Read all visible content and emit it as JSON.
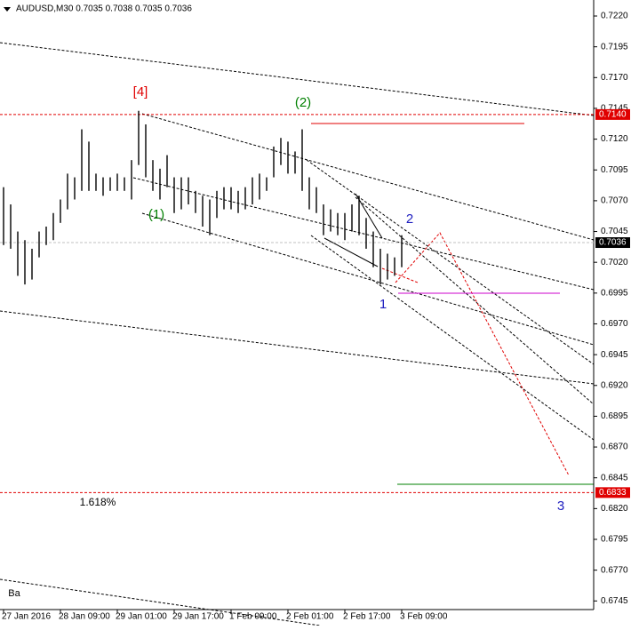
{
  "chart_data": {
    "type": "hl",
    "title": "AUDUSD,M30  0.7035 0.7038 0.7035 0.7036",
    "x": [
      0,
      4,
      8,
      12,
      16,
      20,
      24,
      28,
      32,
      36,
      40,
      44,
      48,
      52,
      56,
      60,
      64,
      68,
      72,
      76,
      80,
      84,
      88,
      92,
      96,
      100,
      104,
      108,
      112,
      116,
      120,
      124,
      128,
      132,
      136,
      140,
      144,
      148,
      152,
      156,
      160,
      164,
      168,
      172,
      176,
      180,
      184,
      188,
      192,
      196,
      200,
      204,
      208,
      212,
      216,
      220,
      224
    ],
    "high": [
      0.7081,
      0.7067,
      0.7045,
      0.7038,
      0.7031,
      0.7045,
      0.7049,
      0.706,
      0.7071,
      0.7092,
      0.7089,
      0.7128,
      0.7118,
      0.7092,
      0.7089,
      0.7089,
      0.7092,
      0.7089,
      0.7103,
      0.7143,
      0.7132,
      0.7103,
      0.7096,
      0.7107,
      0.7089,
      0.7089,
      0.7089,
      0.7078,
      0.7074,
      0.7071,
      0.7078,
      0.7081,
      0.7081,
      0.7078,
      0.7081,
      0.7089,
      0.7092,
      0.7089,
      0.7114,
      0.7121,
      0.7118,
      0.711,
      0.7128,
      0.7089,
      0.7081,
      0.7067,
      0.7063,
      0.706,
      0.706,
      0.7067,
      0.7074,
      0.7056,
      0.7045,
      0.7031,
      0.7027,
      0.7024,
      0.7042
    ],
    "low": [
      0.7034,
      0.7031,
      0.7009,
      0.7002,
      0.7006,
      0.7024,
      0.7034,
      0.7038,
      0.7052,
      0.7063,
      0.7071,
      0.7078,
      0.7078,
      0.7078,
      0.7074,
      0.7078,
      0.7078,
      0.7078,
      0.7071,
      0.7099,
      0.7089,
      0.7078,
      0.7071,
      0.7081,
      0.706,
      0.7063,
      0.7067,
      0.706,
      0.7049,
      0.7042,
      0.7056,
      0.7063,
      0.7063,
      0.706,
      0.7063,
      0.7067,
      0.7071,
      0.7078,
      0.7089,
      0.7099,
      0.7092,
      0.7092,
      0.7078,
      0.7063,
      0.706,
      0.7042,
      0.7045,
      0.7042,
      0.7038,
      0.7045,
      0.7042,
      0.7031,
      0.7016,
      0.7002,
      0.7006,
      0.7009,
      0.7016
    ],
    "color": "#000000",
    "xlim": [
      -2,
      332
    ],
    "xticks": [
      {
        "value": 0,
        "label": "27 Jan 2016"
      },
      {
        "value": 32,
        "label": "28 Jan 09:00"
      },
      {
        "value": 64,
        "label": "29 Jan 01:00"
      },
      {
        "value": 96,
        "label": "29 Jan 17:00"
      },
      {
        "value": 128,
        "label": "1 Feb 09:00"
      },
      {
        "value": 160,
        "label": "2 Feb 01:00"
      },
      {
        "value": 192,
        "label": "2 Feb 17:00"
      },
      {
        "value": 224,
        "label": "3 Feb 09:00"
      }
    ],
    "ylim": [
      0.6738,
      0.7233
    ],
    "yticks": [
      {
        "value": 0.722,
        "label": "0.7220"
      },
      {
        "value": 0.7195,
        "label": "0.7195"
      },
      {
        "value": 0.717,
        "label": "0.7170"
      },
      {
        "value": 0.7145,
        "label": "0.7145"
      },
      {
        "value": 0.712,
        "label": "0.7120"
      },
      {
        "value": 0.7095,
        "label": "0.7095"
      },
      {
        "value": 0.707,
        "label": "0.7070"
      },
      {
        "value": 0.7045,
        "label": "0.7045"
      },
      {
        "value": 0.702,
        "label": "0.7020"
      },
      {
        "value": 0.6995,
        "label": "0.6995"
      },
      {
        "value": 0.697,
        "label": "0.6970"
      },
      {
        "value": 0.6945,
        "label": "0.6945"
      },
      {
        "value": 0.692,
        "label": "0.6920"
      },
      {
        "value": 0.6895,
        "label": "0.6895"
      },
      {
        "value": 0.687,
        "label": "0.6870"
      },
      {
        "value": 0.6845,
        "label": "0.6845"
      },
      {
        "value": 0.682,
        "label": "0.6820"
      },
      {
        "value": 0.6795,
        "label": "0.6795"
      },
      {
        "value": 0.677,
        "label": "0.6770"
      },
      {
        "value": 0.6745,
        "label": "0.6745"
      }
    ],
    "levels": [
      {
        "value": 0.714,
        "label": "0.7140",
        "color": "#e00000"
      },
      {
        "value": 0.7036,
        "label": "0.7036",
        "color": "#c0c0c0"
      },
      {
        "value": 0.6833,
        "label": "0.6833",
        "color": "#e00000"
      }
    ],
    "annotations": [
      "[4]",
      "(2)",
      "(1)",
      "2",
      "1",
      "3",
      "1.618%",
      "Ba"
    ]
  }
}
